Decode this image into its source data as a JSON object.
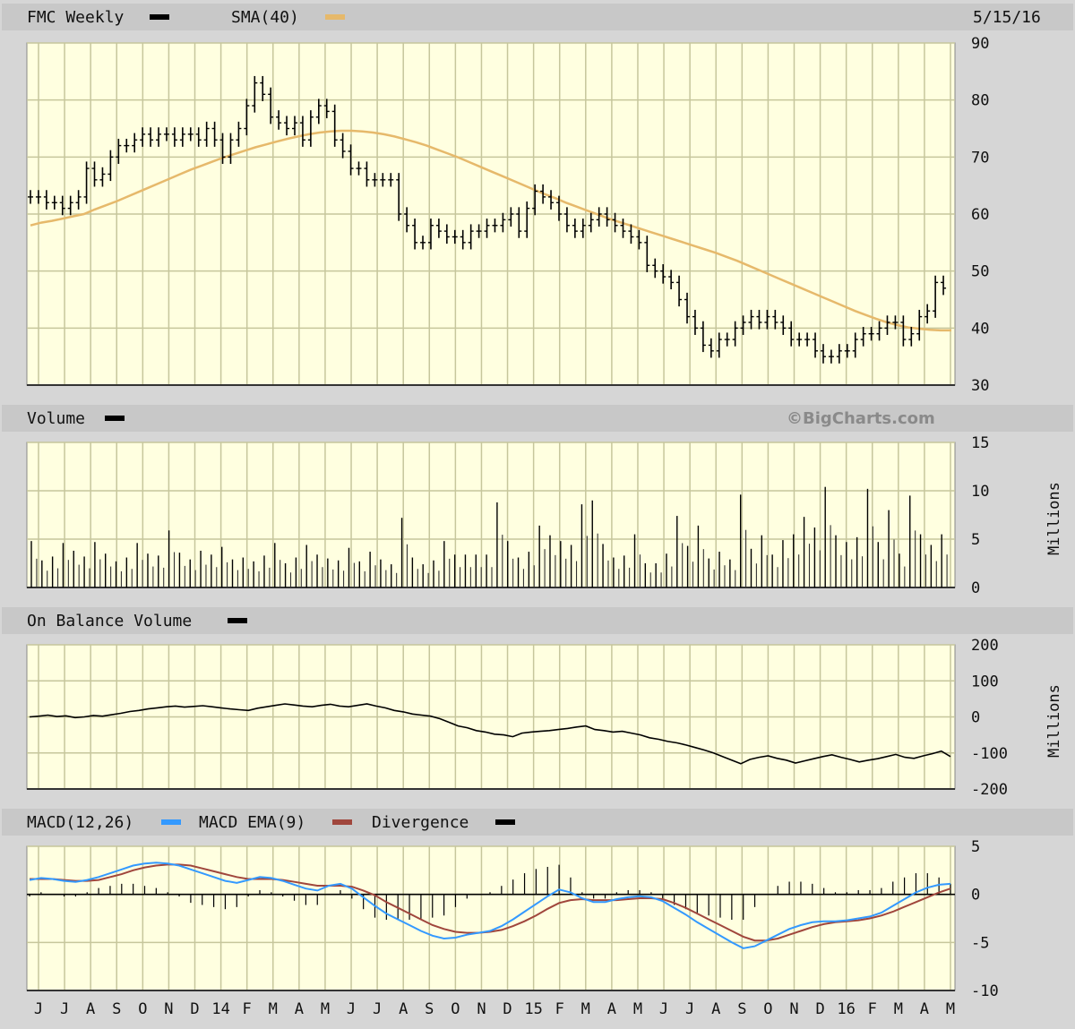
{
  "header": {
    "title": "FMC Weekly",
    "sma_label": "SMA(40)",
    "date": "5/15/16"
  },
  "colors": {
    "background": "#d6d6d6",
    "plot_bg": "#ffffe0",
    "grid": "#c6c69c",
    "price": "#000000",
    "sma": "#e6b96b",
    "macd": "#3399ff",
    "macd_ema": "#a0463c",
    "header_strip": "#c8c8c8"
  },
  "watermark": "©BigCharts.com",
  "x_axis": {
    "labels": [
      "J",
      "J",
      "A",
      "S",
      "O",
      "N",
      "D",
      "14",
      "F",
      "M",
      "A",
      "M",
      "J",
      "J",
      "A",
      "S",
      "O",
      "N",
      "D",
      "15",
      "F",
      "M",
      "A",
      "M",
      "J",
      "J",
      "A",
      "S",
      "O",
      "N",
      "D",
      "16",
      "F",
      "M",
      "A",
      "M"
    ]
  },
  "chart_data": [
    {
      "id": "price",
      "type": "line",
      "title": "FMC Weekly",
      "series": [
        {
          "name": "FMC Weekly",
          "kind": "ohlc-bars",
          "values": [
            63,
            63,
            62,
            62,
            61,
            62,
            63,
            68,
            66,
            67,
            70,
            72,
            72,
            73,
            74,
            73,
            74,
            74,
            73,
            74,
            74,
            73,
            75,
            73,
            70,
            73,
            75,
            79,
            83,
            81,
            77,
            76,
            75,
            76,
            73,
            77,
            79,
            78,
            73,
            71,
            68,
            68,
            66,
            66,
            66,
            66,
            60,
            58,
            55,
            55,
            58,
            57,
            56,
            56,
            55,
            57,
            57,
            58,
            58,
            59,
            60,
            57,
            61,
            64,
            63,
            62,
            60,
            58,
            57,
            58,
            59,
            60,
            59,
            58,
            57,
            56,
            55,
            51,
            50,
            49,
            48,
            45,
            42,
            40,
            37,
            36,
            38,
            38,
            40,
            41,
            42,
            41,
            42,
            41,
            40,
            38,
            38,
            38,
            36,
            35,
            35,
            36,
            36,
            38,
            39,
            39,
            40,
            41,
            41,
            38,
            39,
            42,
            43,
            48,
            47
          ]
        },
        {
          "name": "SMA(40)",
          "values": [
            58,
            58.5,
            58.8,
            59.2,
            59.6,
            60,
            60.8,
            61.5,
            62.2,
            63,
            63.8,
            64.6,
            65.4,
            66.2,
            67,
            67.8,
            68.5,
            69.2,
            69.9,
            70.5,
            71.1,
            71.7,
            72.2,
            72.7,
            73.2,
            73.6,
            74,
            74.3,
            74.5,
            74.6,
            74.6,
            74.5,
            74.3,
            74,
            73.6,
            73.1,
            72.6,
            72,
            71.3,
            70.6,
            69.9,
            69.1,
            68.3,
            67.5,
            66.7,
            65.9,
            65.1,
            64.3,
            63.5,
            62.8,
            62,
            61.3,
            60.6,
            59.9,
            59.2,
            58.6,
            58,
            57.4,
            56.8,
            56.2,
            55.6,
            55,
            54.4,
            53.8,
            53.2,
            52.5,
            51.8,
            51,
            50.2,
            49.4,
            48.6,
            47.8,
            47,
            46.2,
            45.4,
            44.6,
            43.8,
            43,
            42.3,
            41.6,
            41,
            40.5,
            40.1,
            39.9,
            39.7,
            39.6,
            39.6
          ]
        }
      ],
      "ylim": [
        30,
        90
      ],
      "yticks": [
        90,
        80,
        70,
        60,
        50,
        40,
        30
      ]
    },
    {
      "id": "volume",
      "type": "bar",
      "title": "Volume",
      "ylabel": "Millions",
      "series": [
        {
          "name": "Volume",
          "values": [
            4.8,
            2.8,
            3.2,
            4.6,
            3.8,
            3.2,
            4.7,
            3.5,
            2.7,
            3.1,
            4.6,
            3.5,
            3.3,
            5.9,
            3.6,
            2.9,
            3.8,
            3.4,
            4.2,
            2.9,
            3.1,
            2.7,
            3.3,
            4.6,
            2.5,
            3.1,
            4.4,
            3.4,
            3.0,
            2.8,
            4.1,
            2.7,
            3.7,
            2.9,
            2.4,
            7.2,
            3.1,
            2.4,
            2.8,
            4.8,
            3.4,
            3.4,
            3.4,
            3.4,
            8.8,
            4.8,
            3.1,
            3.7,
            6.4,
            5.4,
            4.8,
            4.4,
            8.6,
            9.0,
            4.5,
            3.1,
            3.3,
            5.5,
            2.5,
            2.5,
            3.5,
            7.4,
            4.3,
            6.4,
            3.0,
            3.7,
            2.9,
            9.6,
            4.0,
            5.4,
            3.4,
            4.9,
            5.5,
            7.3,
            6.2,
            10.4,
            5.4,
            4.7,
            5.2,
            10.2,
            4.7,
            8.0,
            3.5,
            9.5,
            5.5,
            4.4,
            5.5
          ],
          "dense": true
        }
      ],
      "ylim": [
        0,
        15
      ],
      "yticks": [
        15,
        10,
        5,
        0
      ]
    },
    {
      "id": "obv",
      "type": "line",
      "title": "On Balance Volume",
      "ylabel": "Millions",
      "series": [
        {
          "name": "On Balance Volume",
          "values": [
            0,
            2,
            5,
            1,
            3,
            -2,
            0,
            4,
            2,
            6,
            10,
            15,
            18,
            22,
            25,
            28,
            30,
            27,
            29,
            31,
            28,
            25,
            22,
            20,
            18,
            24,
            28,
            32,
            36,
            33,
            30,
            28,
            32,
            35,
            30,
            28,
            32,
            36,
            30,
            25,
            18,
            14,
            8,
            5,
            2,
            -5,
            -15,
            -25,
            -30,
            -38,
            -42,
            -48,
            -50,
            -55,
            -45,
            -42,
            -40,
            -38,
            -35,
            -32,
            -28,
            -25,
            -35,
            -38,
            -42,
            -40,
            -45,
            -50,
            -58,
            -62,
            -68,
            -72,
            -78,
            -85,
            -92,
            -100,
            -110,
            -120,
            -130,
            -118,
            -112,
            -108,
            -115,
            -120,
            -128,
            -122,
            -116,
            -110,
            -105,
            -112,
            -118,
            -125,
            -120,
            -116,
            -110,
            -104,
            -112,
            -115,
            -108,
            -102,
            -95,
            -110
          ]
        }
      ],
      "ylim": [
        -200,
        200
      ],
      "yticks": [
        200,
        100,
        0,
        -100,
        -200
      ]
    },
    {
      "id": "macd",
      "type": "line",
      "title": "MACD",
      "series": [
        {
          "name": "MACD(12,26)",
          "values": [
            1.5,
            1.7,
            1.6,
            1.4,
            1.3,
            1.5,
            1.8,
            2.2,
            2.6,
            3.0,
            3.2,
            3.3,
            3.2,
            3.0,
            2.6,
            2.2,
            1.8,
            1.4,
            1.2,
            1.5,
            1.8,
            1.7,
            1.4,
            1.0,
            0.6,
            0.4,
            0.9,
            1.1,
            0.6,
            -0.3,
            -1.2,
            -2.0,
            -2.6,
            -3.2,
            -3.8,
            -4.3,
            -4.6,
            -4.5,
            -4.2,
            -4.0,
            -3.8,
            -3.3,
            -2.6,
            -1.8,
            -1.0,
            -0.2,
            0.5,
            0.2,
            -0.4,
            -0.8,
            -0.8,
            -0.5,
            -0.3,
            -0.2,
            -0.3,
            -0.7,
            -1.4,
            -2.1,
            -2.9,
            -3.6,
            -4.3,
            -5.0,
            -5.6,
            -5.4,
            -4.8,
            -4.2,
            -3.6,
            -3.2,
            -2.9,
            -2.8,
            -2.8,
            -2.7,
            -2.5,
            -2.3,
            -1.9,
            -1.2,
            -0.5,
            0.2,
            0.7,
            1.0,
            1.1
          ]
        },
        {
          "name": "MACD EMA(9)",
          "values": [
            1.6,
            1.6,
            1.6,
            1.5,
            1.4,
            1.4,
            1.5,
            1.8,
            2.1,
            2.5,
            2.8,
            3.0,
            3.1,
            3.1,
            3.0,
            2.7,
            2.4,
            2.1,
            1.8,
            1.6,
            1.6,
            1.6,
            1.5,
            1.3,
            1.1,
            0.9,
            0.9,
            0.9,
            0.8,
            0.4,
            -0.1,
            -0.8,
            -1.4,
            -2.0,
            -2.6,
            -3.2,
            -3.6,
            -3.9,
            -4.0,
            -4.0,
            -3.9,
            -3.7,
            -3.3,
            -2.8,
            -2.2,
            -1.5,
            -0.9,
            -0.6,
            -0.5,
            -0.6,
            -0.6,
            -0.6,
            -0.5,
            -0.4,
            -0.4,
            -0.5,
            -0.9,
            -1.4,
            -2.0,
            -2.6,
            -3.2,
            -3.8,
            -4.4,
            -4.8,
            -4.8,
            -4.6,
            -4.2,
            -3.8,
            -3.4,
            -3.1,
            -2.9,
            -2.8,
            -2.7,
            -2.5,
            -2.2,
            -1.8,
            -1.3,
            -0.8,
            -0.3,
            0.2,
            0.6
          ]
        },
        {
          "name": "Divergence",
          "values": []
        }
      ],
      "ylim": [
        -10,
        5
      ],
      "yticks": [
        5,
        0,
        -5,
        -10
      ]
    }
  ],
  "panels": {
    "volume": {
      "title": "Volume",
      "watermark": "©BigCharts.com",
      "units": "Millions"
    },
    "obv": {
      "title": "On Balance Volume",
      "units": "Millions"
    },
    "macd": {
      "title": "MACD(12,26)",
      "ema": "MACD EMA(9)",
      "divergence": "Divergence"
    }
  }
}
